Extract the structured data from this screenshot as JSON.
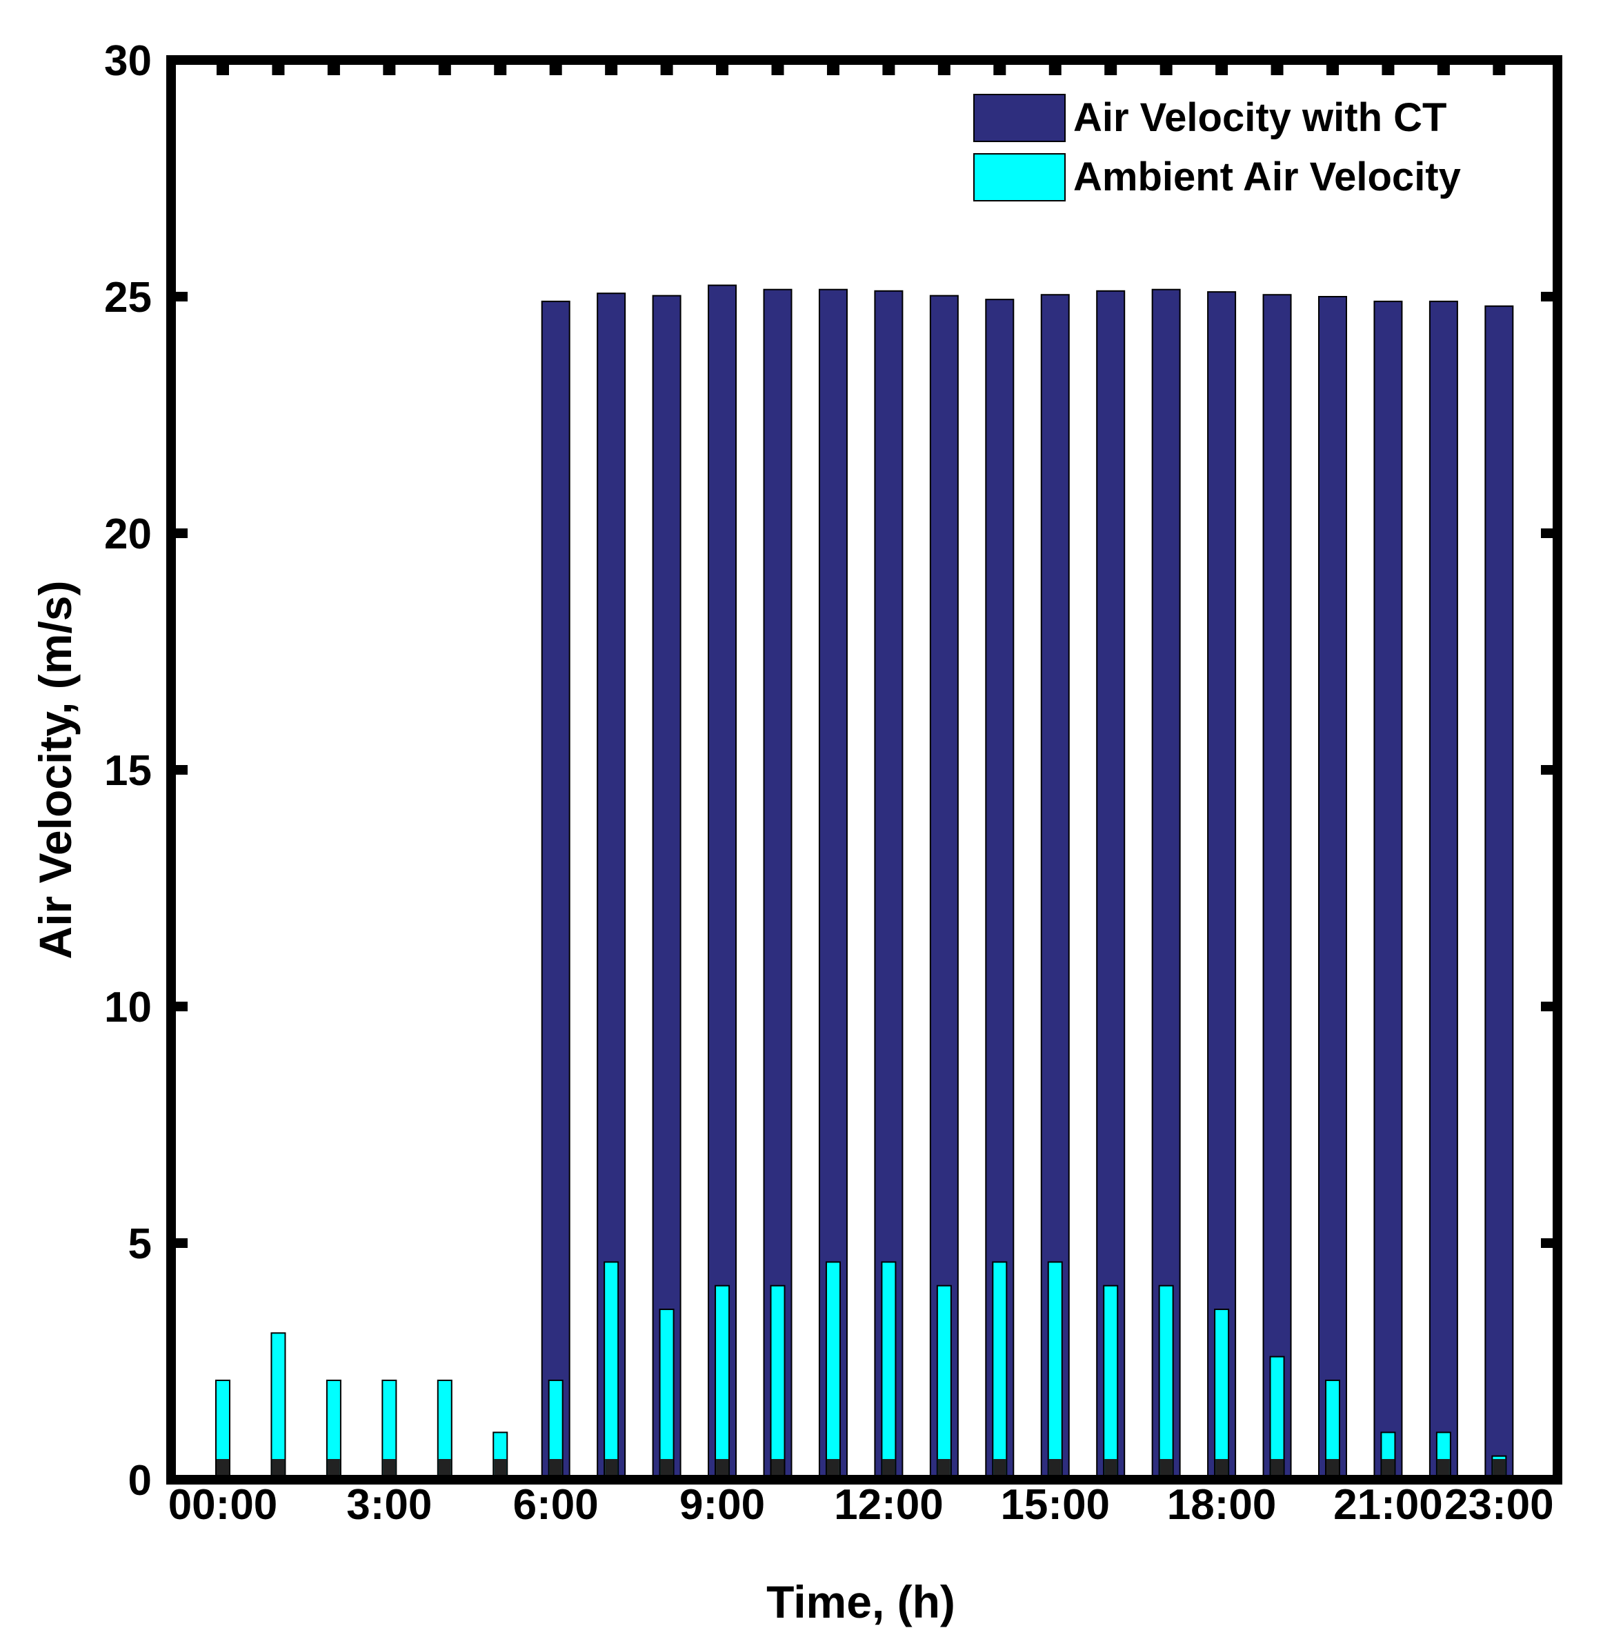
{
  "chart_data": {
    "type": "bar",
    "xlabel": "Time, (h)",
    "ylabel": "Air Velocity, (m/s)",
    "ylim": [
      0,
      30
    ],
    "yticks": [
      "0",
      "5",
      "10",
      "15",
      "20",
      "25",
      "30"
    ],
    "xtick_labels": [
      {
        "hour": 0,
        "label": "00:00"
      },
      {
        "hour": 3,
        "label": "3:00"
      },
      {
        "hour": 6,
        "label": "6:00"
      },
      {
        "hour": 9,
        "label": "9:00"
      },
      {
        "hour": 12,
        "label": "12:00"
      },
      {
        "hour": 15,
        "label": "15:00"
      },
      {
        "hour": 18,
        "label": "18:00"
      },
      {
        "hour": 21,
        "label": "21:00"
      },
      {
        "hour": 23,
        "label": "23:00"
      }
    ],
    "categories": [
      0,
      1,
      2,
      3,
      4,
      5,
      6,
      7,
      8,
      9,
      10,
      11,
      12,
      13,
      14,
      15,
      16,
      17,
      18,
      19,
      20,
      21,
      22,
      23
    ],
    "legend_position": "top-right",
    "grid": false,
    "series": [
      {
        "name": "Air Velocity with CT",
        "color": "#2e2e7e",
        "values": [
          0,
          0,
          0,
          0,
          0,
          0,
          24.9,
          25.07,
          25.02,
          25.24,
          25.15,
          25.15,
          25.12,
          25.02,
          24.94,
          25.04,
          25.12,
          25.15,
          25.1,
          25.04,
          25.0,
          24.9,
          24.9,
          24.8
        ]
      },
      {
        "name": "Ambient Air Velocity",
        "color": "#00ffff",
        "values": [
          2.1,
          3.1,
          2.1,
          2.1,
          2.1,
          1.0,
          2.1,
          4.6,
          3.6,
          4.1,
          4.1,
          4.6,
          4.6,
          4.1,
          4.6,
          4.6,
          4.1,
          4.1,
          3.6,
          2.6,
          2.1,
          1.0,
          1.0,
          0.5
        ]
      }
    ]
  }
}
